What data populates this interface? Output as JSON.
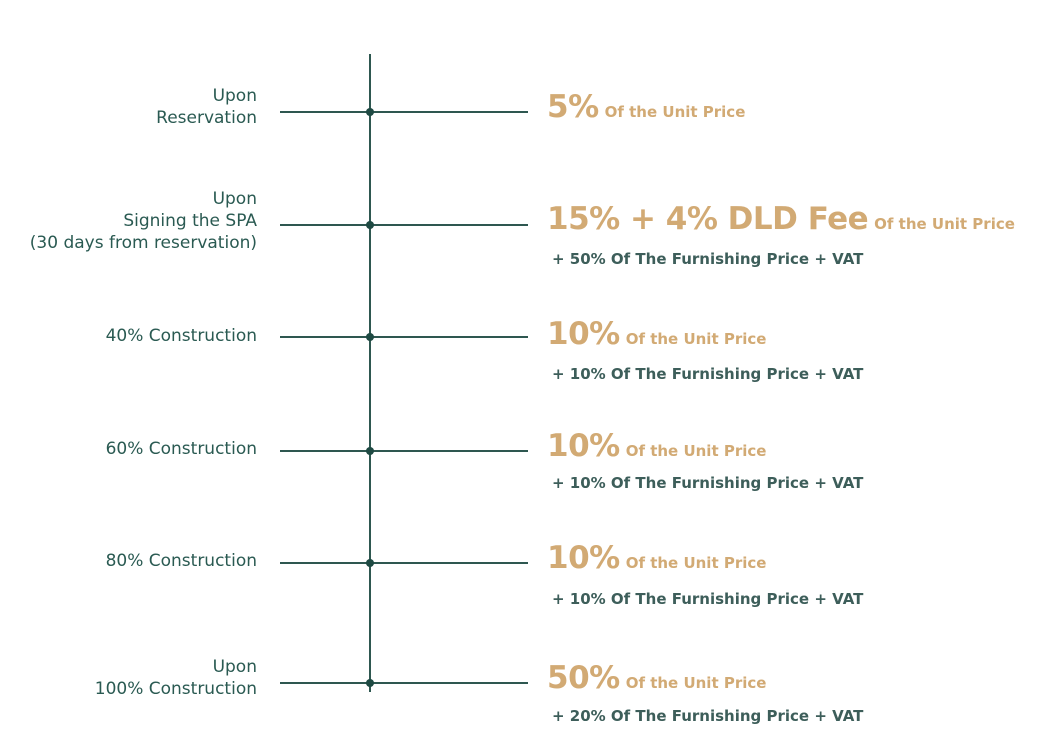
{
  "colors": {
    "line": "#2e5750",
    "stage_text": "#2a5a52",
    "accent_gold": "#d2aa74",
    "furnishing_text": "#3d5e5a"
  },
  "milestones": [
    {
      "stage_lines": [
        "Upon",
        "Reservation"
      ],
      "payment": "5%",
      "unit_note": "Of the Unit Price",
      "furnishing": ""
    },
    {
      "stage_lines": [
        "Upon",
        "Signing the SPA",
        "(30 days from reservation)"
      ],
      "payment": "15% + 4% DLD Fee",
      "unit_note": "Of the Unit Price",
      "furnishing": "+ 50% Of The Furnishing Price + VAT"
    },
    {
      "stage_lines": [
        "40% Construction"
      ],
      "payment": "10%",
      "unit_note": "Of the Unit Price",
      "furnishing": "+ 10% Of The Furnishing Price + VAT"
    },
    {
      "stage_lines": [
        "60% Construction"
      ],
      "payment": "10%",
      "unit_note": "Of the Unit Price",
      "furnishing": "+ 10% Of The Furnishing Price + VAT"
    },
    {
      "stage_lines": [
        "80% Construction"
      ],
      "payment": "10%",
      "unit_note": "Of the Unit Price",
      "furnishing": "+ 10% Of The Furnishing Price + VAT"
    },
    {
      "stage_lines": [
        "Upon",
        "100% Construction"
      ],
      "payment": "50%",
      "unit_note": "Of the Unit Price",
      "furnishing": "+ 20% Of The Furnishing Price + VAT"
    }
  ]
}
